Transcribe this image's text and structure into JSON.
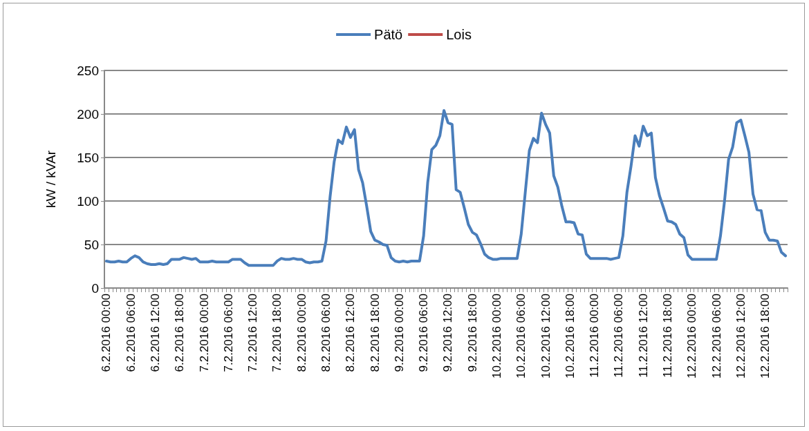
{
  "chart_data": {
    "type": "line",
    "ylabel": "kW / kVAr",
    "ylim": [
      0,
      250
    ],
    "yticks": [
      0,
      50,
      100,
      150,
      200,
      250
    ],
    "grid": "y",
    "legend": "top",
    "marker": "none",
    "line_style": "solid",
    "categories": [
      "6.2.2016 00:00",
      null,
      null,
      null,
      null,
      null,
      "6.2.2016 06:00",
      null,
      null,
      null,
      null,
      null,
      "6.2.2016 12:00",
      null,
      null,
      null,
      null,
      null,
      "6.2.2016 18:00",
      null,
      null,
      null,
      null,
      null,
      "7.2.2016 00:00",
      null,
      null,
      null,
      null,
      null,
      "7.2.2016 06:00",
      null,
      null,
      null,
      null,
      null,
      "7.2.2016 12:00",
      null,
      null,
      null,
      null,
      null,
      "7.2.2016 18:00",
      null,
      null,
      null,
      null,
      null,
      "8.2.2016 00:00",
      null,
      null,
      null,
      null,
      null,
      "8.2.2016 06:00",
      null,
      null,
      null,
      null,
      null,
      "8.2.2016 12:00",
      null,
      null,
      null,
      null,
      null,
      "8.2.2016 18:00",
      null,
      null,
      null,
      null,
      null,
      "9.2.2016 00:00",
      null,
      null,
      null,
      null,
      null,
      "9.2.2016 06:00",
      null,
      null,
      null,
      null,
      null,
      "9.2.2016 12:00",
      null,
      null,
      null,
      null,
      null,
      "9.2.2016 18:00",
      null,
      null,
      null,
      null,
      null,
      "10.2.2016 00:00",
      null,
      null,
      null,
      null,
      null,
      "10.2.2016 06:00",
      null,
      null,
      null,
      null,
      null,
      "10.2.2016 12:00",
      null,
      null,
      null,
      null,
      null,
      "10.2.2016 18:00",
      null,
      null,
      null,
      null,
      null,
      "11.2.2016 00:00",
      null,
      null,
      null,
      null,
      null,
      "11.2.2016 06:00",
      null,
      null,
      null,
      null,
      null,
      "11.2.2016 12:00",
      null,
      null,
      null,
      null,
      null,
      "11.2.2016 18:00",
      null,
      null,
      null,
      null,
      null,
      "12.2.2016 00:00",
      null,
      null,
      null,
      null,
      null,
      "12.2.2016 06:00",
      null,
      null,
      null,
      null,
      null,
      "12.2.2016 12:00",
      null,
      null,
      null,
      null,
      null,
      "12.2.2016 18:00",
      null,
      null,
      null,
      null,
      null
    ],
    "series": [
      {
        "name": "Pätö",
        "color": "#4a7ebb",
        "values": [
          31,
          30,
          30,
          31,
          30,
          30,
          34,
          37,
          35,
          30,
          28,
          27,
          27,
          28,
          27,
          28,
          33,
          33,
          33,
          35,
          34,
          33,
          34,
          30,
          30,
          30,
          31,
          30,
          30,
          30,
          30,
          33,
          33,
          33,
          29,
          26,
          26,
          26,
          26,
          26,
          26,
          26,
          31,
          34,
          33,
          33,
          34,
          33,
          33,
          30,
          29,
          30,
          30,
          31,
          54,
          105,
          145,
          170,
          166,
          185,
          173,
          182,
          136,
          121,
          94,
          65,
          55,
          53,
          50,
          49,
          35,
          31,
          30,
          31,
          30,
          31,
          31,
          31,
          60,
          121,
          159,
          164,
          175,
          204,
          190,
          188,
          113,
          110,
          92,
          73,
          64,
          61,
          51,
          39,
          35,
          33,
          33,
          34,
          34,
          34,
          34,
          34,
          62,
          110,
          158,
          172,
          167,
          201,
          188,
          178,
          129,
          116,
          94,
          76,
          76,
          75,
          62,
          61,
          39,
          34,
          34,
          34,
          34,
          34,
          33,
          34,
          35,
          60,
          110,
          140,
          175,
          163,
          186,
          175,
          178,
          127,
          106,
          92,
          77,
          76,
          73,
          62,
          58,
          38,
          33,
          33,
          33,
          33,
          33,
          33,
          33,
          60,
          100,
          148,
          162,
          190,
          193,
          175,
          156,
          108,
          90,
          89,
          64,
          55,
          55,
          54,
          41,
          37
        ]
      },
      {
        "name": "Lois",
        "color": "#be4b48",
        "values": [
          null,
          null,
          null,
          null,
          null,
          null,
          null,
          null,
          null,
          null,
          null,
          null,
          null,
          null,
          null,
          null,
          null,
          null,
          null,
          null,
          null,
          null,
          null,
          null,
          null,
          null,
          null,
          null,
          null,
          null,
          null,
          null,
          null,
          null,
          null,
          null,
          null,
          null,
          null,
          null,
          null,
          null,
          null,
          null,
          null,
          null,
          null,
          null,
          null,
          null,
          null,
          null,
          null,
          null,
          null,
          null,
          null,
          null,
          null,
          null,
          null,
          null,
          null,
          null,
          null,
          null,
          null,
          null,
          null,
          null,
          null,
          null,
          null,
          null,
          null,
          null,
          null,
          null,
          null,
          null,
          null,
          null,
          null,
          null,
          null,
          null,
          null,
          null,
          null,
          null,
          null,
          null,
          null,
          null,
          null,
          null,
          null,
          null,
          null,
          null,
          null,
          null,
          null,
          null,
          null,
          null,
          null,
          null,
          null,
          null,
          null,
          null,
          null,
          null,
          null,
          null,
          null,
          null,
          null,
          null,
          null,
          null,
          null,
          null,
          null,
          null,
          null,
          null,
          null,
          null,
          null,
          null,
          null,
          null,
          null,
          null,
          null,
          null,
          null,
          null,
          null,
          null,
          null,
          null,
          null,
          null,
          null,
          null,
          null,
          null,
          null,
          null,
          null,
          null,
          null,
          null,
          null,
          null,
          null,
          null,
          null,
          null,
          null,
          null,
          null,
          null,
          null,
          null
        ]
      }
    ]
  }
}
